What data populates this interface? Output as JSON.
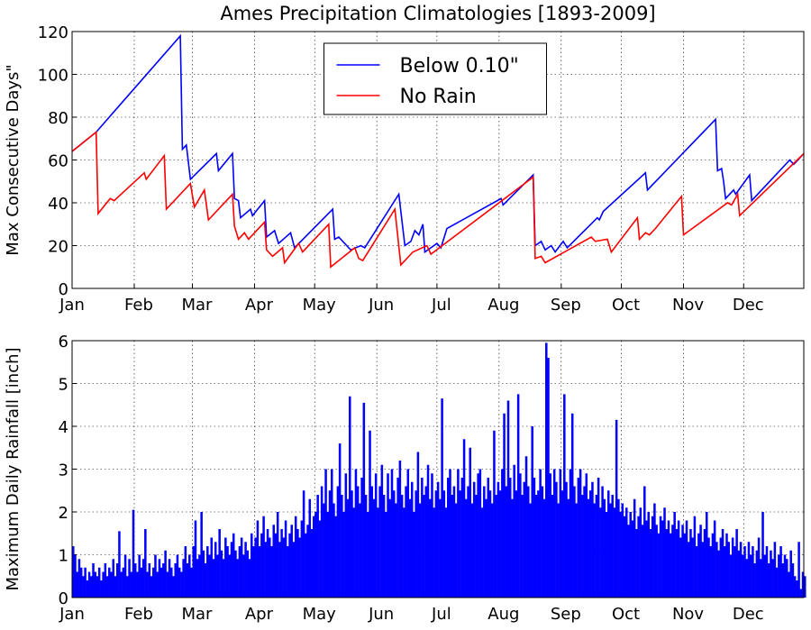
{
  "chart_data": [
    {
      "type": "line",
      "title": "Ames Precipitation Climatologies [1893-2009]",
      "ylabel": "Max Consecutive Days\"",
      "xlim": [
        1,
        366
      ],
      "xticks": [
        {
          "value": 1,
          "label": "Jan"
        },
        {
          "value": 32,
          "label": "Feb"
        },
        {
          "value": 61,
          "label": "Mar"
        },
        {
          "value": 92,
          "label": "Apr"
        },
        {
          "value": 122,
          "label": "May"
        },
        {
          "value": 153,
          "label": "Jun"
        },
        {
          "value": 183,
          "label": "Jul"
        },
        {
          "value": 214,
          "label": "Aug"
        },
        {
          "value": 245,
          "label": "Sep"
        },
        {
          "value": 275,
          "label": "Oct"
        },
        {
          "value": 306,
          "label": "Nov"
        },
        {
          "value": 336,
          "label": "Dec"
        }
      ],
      "ylim": [
        0,
        120
      ],
      "yticks": [
        0,
        20,
        40,
        60,
        80,
        100,
        120
      ],
      "grid": true,
      "legend": "upper center",
      "series": [
        {
          "name": "Below 0.10\"",
          "color": "#0000ff",
          "x": [
            1,
            13,
            55,
            56,
            58,
            60,
            73,
            74,
            81,
            82,
            84,
            85,
            90,
            91,
            97,
            98,
            102,
            104,
            110,
            112,
            131,
            132,
            134,
            140,
            145,
            147,
            164,
            167,
            170,
            172,
            174,
            176,
            177,
            183,
            185,
            188,
            215,
            216,
            231,
            232,
            235,
            237,
            240,
            242,
            246,
            248,
            263,
            264,
            266,
            287,
            288,
            322,
            323,
            325,
            326,
            327,
            331,
            332,
            339,
            340,
            359,
            361,
            366
          ],
          "values": [
            64,
            73,
            118,
            65,
            67,
            51,
            63,
            55,
            63,
            42,
            41,
            33,
            37,
            34,
            41,
            24,
            27,
            21,
            26,
            19,
            37,
            23,
            24,
            18,
            20,
            19,
            44,
            20,
            22,
            27,
            25,
            30,
            17,
            21,
            19,
            28,
            42,
            39,
            53,
            20,
            22,
            18,
            20,
            17,
            22,
            19,
            33,
            32,
            36,
            54,
            46,
            79,
            55,
            56,
            50,
            42,
            46,
            44,
            53,
            41,
            60,
            58,
            63
          ]
        },
        {
          "name": "No Rain",
          "color": "#ff0000",
          "x": [
            1,
            13,
            14,
            20,
            22,
            37,
            38,
            47,
            48,
            60,
            62,
            67,
            69,
            81,
            82,
            84,
            87,
            89,
            97,
            98,
            101,
            106,
            107,
            114,
            116,
            129,
            130,
            142,
            144,
            146,
            162,
            165,
            170,
            171,
            178,
            180,
            231,
            232,
            235,
            237,
            260,
            262,
            268,
            270,
            283,
            284,
            287,
            289,
            292,
            305,
            306,
            328,
            330,
            333,
            334,
            366
          ],
          "values": [
            64,
            73,
            35,
            42,
            41,
            54,
            51,
            62,
            37,
            49,
            38,
            46,
            32,
            44,
            29,
            23,
            26,
            23,
            31,
            18,
            15,
            19,
            12,
            21,
            17,
            30,
            10,
            19,
            14,
            13,
            37,
            11,
            16,
            17,
            20,
            16,
            52,
            14,
            15,
            12,
            24,
            22,
            23,
            17,
            33,
            23,
            26,
            25,
            28,
            43,
            25,
            40,
            39,
            44,
            34,
            63
          ]
        }
      ]
    },
    {
      "type": "bar",
      "ylabel": "Maximum Daily Rainfall [inch]",
      "color": "#0000ff",
      "xlim": [
        1,
        366
      ],
      "xticks": [
        {
          "value": 1,
          "label": "Jan"
        },
        {
          "value": 32,
          "label": "Feb"
        },
        {
          "value": 61,
          "label": "Mar"
        },
        {
          "value": 92,
          "label": "Apr"
        },
        {
          "value": 122,
          "label": "May"
        },
        {
          "value": 153,
          "label": "Jun"
        },
        {
          "value": 183,
          "label": "Jul"
        },
        {
          "value": 214,
          "label": "Aug"
        },
        {
          "value": 245,
          "label": "Sep"
        },
        {
          "value": 275,
          "label": "Oct"
        },
        {
          "value": 306,
          "label": "Nov"
        },
        {
          "value": 336,
          "label": "Dec"
        }
      ],
      "ylim": [
        0,
        6
      ],
      "yticks": [
        0,
        1,
        2,
        3,
        4,
        5,
        6
      ],
      "grid": true,
      "values": [
        1.2,
        1.0,
        0.6,
        0.9,
        0.7,
        0.5,
        0.7,
        0.4,
        0.6,
        0.5,
        0.8,
        0.6,
        0.5,
        0.7,
        0.4,
        0.6,
        0.8,
        0.5,
        0.7,
        0.6,
        0.9,
        0.5,
        0.8,
        1.55,
        0.6,
        0.7,
        1.0,
        0.5,
        0.9,
        0.6,
        2.05,
        0.8,
        0.6,
        1.0,
        0.7,
        0.9,
        1.6,
        0.6,
        0.8,
        0.5,
        0.7,
        1.0,
        0.6,
        0.9,
        0.7,
        0.8,
        1.1,
        0.6,
        0.9,
        0.7,
        0.5,
        0.8,
        1.0,
        0.7,
        0.6,
        0.9,
        1.2,
        0.8,
        1.0,
        0.7,
        1.2,
        1.8,
        0.9,
        1.0,
        2.0,
        1.1,
        0.8,
        1.2,
        1.0,
        1.4,
        0.9,
        1.3,
        1.0,
        1.6,
        1.1,
        0.9,
        1.4,
        1.2,
        1.0,
        1.3,
        1.5,
        1.1,
        0.9,
        1.2,
        1.4,
        1.0,
        1.3,
        1.1,
        0.9,
        1.5,
        1.2,
        1.4,
        1.8,
        1.2,
        1.5,
        1.9,
        1.3,
        1.6,
        1.4,
        1.2,
        1.7,
        1.5,
        2.0,
        1.3,
        1.6,
        1.4,
        1.8,
        1.2,
        1.5,
        1.7,
        1.3,
        1.9,
        1.6,
        1.4,
        1.8,
        2.5,
        1.5,
        1.7,
        2.3,
        1.6,
        1.9,
        2.0,
        2.4,
        1.8,
        2.6,
        2.2,
        3.0,
        2.0,
        2.5,
        3.0,
        2.2,
        1.9,
        2.6,
        3.6,
        2.4,
        2.0,
        2.9,
        2.3,
        4.7,
        2.5,
        2.1,
        3.0,
        2.6,
        2.2,
        2.8,
        4.55,
        2.4,
        2.0,
        3.9,
        2.6,
        2.3,
        2.9,
        2.1,
        2.6,
        3.1,
        2.4,
        2.0,
        2.9,
        2.3,
        3.0,
        2.5,
        2.2,
        2.8,
        3.2,
        2.4,
        2.1,
        2.6,
        3.0,
        2.3,
        2.7,
        2.0,
        2.5,
        3.4,
        2.2,
        2.8,
        2.4,
        2.6,
        3.1,
        2.3,
        2.9,
        2.1,
        2.5,
        2.7,
        2.3,
        4.65,
        2.5,
        2.1,
        2.8,
        3.0,
        2.4,
        2.6,
        2.2,
        3.0,
        2.5,
        2.8,
        3.7,
        2.3,
        2.6,
        3.5,
        2.2,
        2.7,
        2.4,
        2.9,
        3.0,
        2.1,
        2.6,
        2.3,
        2.8,
        2.5,
        2.2,
        3.9,
        2.4,
        2.7,
        2.5,
        3.0,
        4.3,
        2.6,
        4.6,
        2.8,
        2.3,
        3.1,
        2.5,
        4.75,
        2.9,
        2.4,
        2.7,
        3.3,
        2.6,
        2.2,
        4.0,
        2.8,
        2.4,
        2.5,
        3.0,
        2.6,
        2.3,
        5.95,
        5.6,
        2.9,
        2.4,
        3.0,
        2.7,
        2.2,
        3.0,
        2.5,
        4.75,
        2.7,
        2.3,
        3.0,
        4.3,
        2.6,
        2.2,
        2.8,
        3.0,
        2.4,
        2.6,
        2.9,
        2.3,
        2.5,
        2.7,
        2.2,
        2.4,
        2.8,
        2.1,
        2.6,
        2.3,
        2.0,
        2.5,
        2.2,
        2.4,
        2.1,
        4.15,
        2.3,
        2.0,
        2.2,
        1.9,
        2.1,
        1.7,
        2.0,
        1.8,
        2.3,
        1.6,
        1.9,
        2.1,
        1.7,
        2.6,
        1.8,
        2.0,
        1.6,
        1.9,
        2.2,
        1.7,
        1.5,
        1.9,
        1.8,
        2.1,
        1.6,
        1.8,
        1.5,
        1.7,
        2.0,
        1.6,
        1.8,
        1.4,
        1.7,
        1.5,
        1.8,
        1.3,
        1.6,
        1.4,
        1.9,
        1.2,
        1.5,
        1.7,
        1.3,
        1.6,
        2.0,
        1.4,
        1.2,
        1.5,
        1.8,
        1.3,
        1.1,
        1.4,
        1.6,
        1.2,
        1.5,
        1.3,
        1.0,
        1.4,
        1.2,
        1.6,
        1.1,
        1.3,
        1.0,
        1.2,
        0.9,
        1.3,
        1.0,
        1.2,
        0.8,
        1.1,
        1.4,
        0.9,
        2.0,
        1.0,
        1.2,
        0.8,
        1.1,
        0.9,
        1.3,
        0.7,
        1.0,
        1.2,
        0.8,
        1.0,
        0.9,
        0.6,
        1.1,
        0.8,
        0.5,
        0.4,
        1.3,
        0.2,
        0.6,
        0.5
      ]
    }
  ]
}
